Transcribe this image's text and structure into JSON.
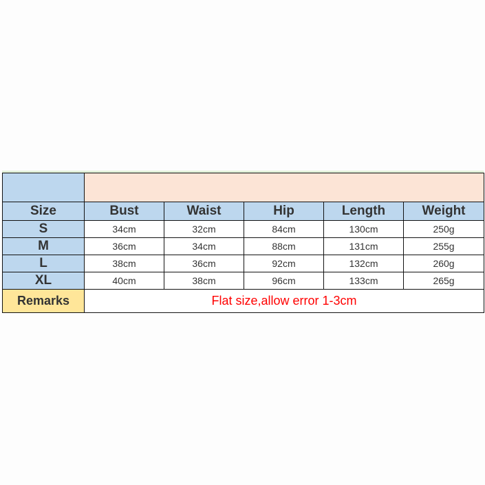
{
  "headers": [
    "Size",
    "Bust",
    "Waist",
    "Hip",
    "Length",
    "Weight"
  ],
  "rows": [
    [
      "S",
      "34cm",
      "32cm",
      "84cm",
      "130cm",
      "250g"
    ],
    [
      "M",
      "36cm",
      "34cm",
      "88cm",
      "131cm",
      "255g"
    ],
    [
      "L",
      "38cm",
      "36cm",
      "92cm",
      "132cm",
      "260g"
    ],
    [
      "XL",
      "40cm",
      "38cm",
      "96cm",
      "133cm",
      "265g"
    ]
  ],
  "remarks_label": "Remarks",
  "remarks_text": "Flat size,allow error 1-3cm",
  "colors": {
    "header_bg": "#bdd7ee",
    "banner_bg": "#fce4d6",
    "remarks_bg": "#ffe699",
    "note_text": "#ff0000"
  }
}
